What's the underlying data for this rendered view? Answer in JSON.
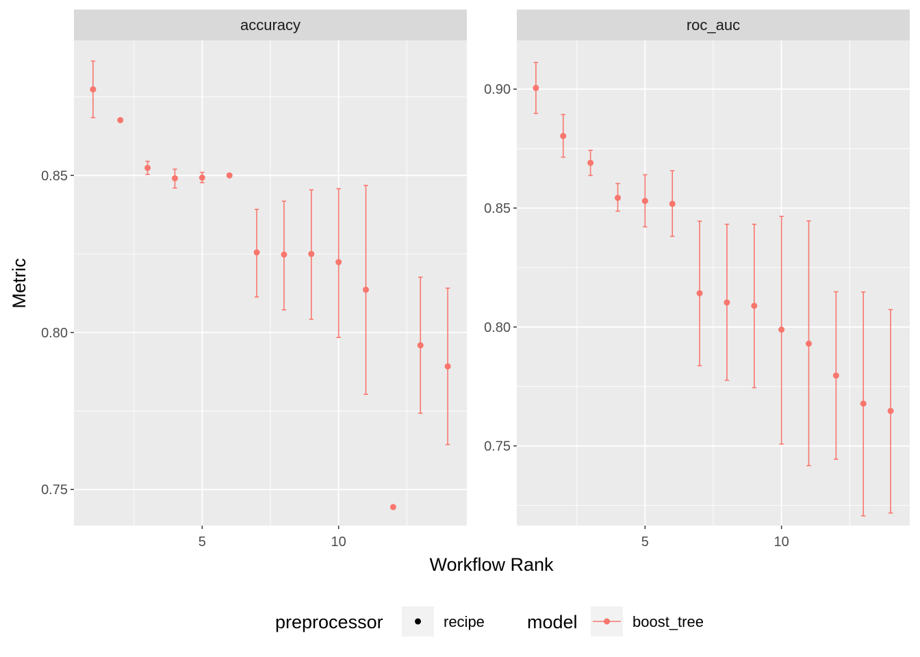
{
  "colors": {
    "series": "#F8766D",
    "panel_bg": "#EBEBEB",
    "strip_bg": "#D9D9D9",
    "grid": "#FFFFFF",
    "key_bg": "#F2F2F2"
  },
  "axes": {
    "xlabel": "Workflow Rank",
    "ylabel": "Metric"
  },
  "legend": {
    "preprocessor_title": "preprocessor",
    "preprocessor_label": "recipe",
    "model_title": "model",
    "model_label": "boost_tree"
  },
  "chart_data": [
    {
      "type": "scatter",
      "panel": "accuracy",
      "title": "accuracy",
      "xlim": [
        0.3,
        14.7
      ],
      "ylim": [
        0.7385,
        0.893
      ],
      "xticks": [
        5,
        10
      ],
      "yticks": [
        0.75,
        0.8,
        0.85
      ],
      "ytick_labels": [
        "0.75",
        "0.80",
        "0.85"
      ],
      "points": [
        {
          "rank": 1,
          "mean": 0.8774,
          "lower": 0.8684,
          "upper": 0.8864
        },
        {
          "rank": 2,
          "mean": 0.8676,
          "lower": null,
          "upper": null
        },
        {
          "rank": 3,
          "mean": 0.8524,
          "lower": 0.8503,
          "upper": 0.8545
        },
        {
          "rank": 4,
          "mean": 0.8491,
          "lower": 0.846,
          "upper": 0.852
        },
        {
          "rank": 5,
          "mean": 0.8493,
          "lower": 0.8477,
          "upper": 0.851
        },
        {
          "rank": 6,
          "mean": 0.85,
          "lower": null,
          "upper": null
        },
        {
          "rank": 7,
          "mean": 0.8255,
          "lower": 0.8113,
          "upper": 0.8392
        },
        {
          "rank": 8,
          "mean": 0.8248,
          "lower": 0.8072,
          "upper": 0.8418
        },
        {
          "rank": 9,
          "mean": 0.825,
          "lower": 0.8042,
          "upper": 0.8454
        },
        {
          "rank": 10,
          "mean": 0.8224,
          "lower": 0.7984,
          "upper": 0.8458
        },
        {
          "rank": 11,
          "mean": 0.8136,
          "lower": 0.7803,
          "upper": 0.8468
        },
        {
          "rank": 12,
          "mean": 0.7444,
          "lower": null,
          "upper": null
        },
        {
          "rank": 13,
          "mean": 0.7959,
          "lower": 0.7743,
          "upper": 0.8176
        },
        {
          "rank": 14,
          "mean": 0.7892,
          "lower": 0.7643,
          "upper": 0.8141
        }
      ]
    },
    {
      "type": "scatter",
      "panel": "roc_auc",
      "title": "roc_auc",
      "xlim": [
        0.3,
        14.7
      ],
      "ylim": [
        0.7165,
        0.9205
      ],
      "xticks": [
        5,
        10
      ],
      "yticks": [
        0.75,
        0.8,
        0.85,
        0.9
      ],
      "ytick_labels": [
        "0.75",
        "0.80",
        "0.85",
        "0.90"
      ],
      "points": [
        {
          "rank": 1,
          "mean": 0.9005,
          "lower": 0.8898,
          "upper": 0.9112
        },
        {
          "rank": 2,
          "mean": 0.8803,
          "lower": 0.8714,
          "upper": 0.8893
        },
        {
          "rank": 3,
          "mean": 0.869,
          "lower": 0.8637,
          "upper": 0.8743
        },
        {
          "rank": 4,
          "mean": 0.8543,
          "lower": 0.8487,
          "upper": 0.8603
        },
        {
          "rank": 5,
          "mean": 0.853,
          "lower": 0.8421,
          "upper": 0.864
        },
        {
          "rank": 6,
          "mean": 0.8518,
          "lower": 0.8381,
          "upper": 0.8657
        },
        {
          "rank": 7,
          "mean": 0.8142,
          "lower": 0.7837,
          "upper": 0.8445
        },
        {
          "rank": 8,
          "mean": 0.8103,
          "lower": 0.7776,
          "upper": 0.8432
        },
        {
          "rank": 9,
          "mean": 0.8089,
          "lower": 0.7745,
          "upper": 0.8432
        },
        {
          "rank": 10,
          "mean": 0.7989,
          "lower": 0.7508,
          "upper": 0.8465
        },
        {
          "rank": 11,
          "mean": 0.793,
          "lower": 0.7417,
          "upper": 0.8446
        },
        {
          "rank": 12,
          "mean": 0.7796,
          "lower": 0.7444,
          "upper": 0.8148
        },
        {
          "rank": 13,
          "mean": 0.7678,
          "lower": 0.7206,
          "upper": 0.8147
        },
        {
          "rank": 14,
          "mean": 0.7647,
          "lower": 0.7218,
          "upper": 0.8073
        }
      ]
    }
  ]
}
